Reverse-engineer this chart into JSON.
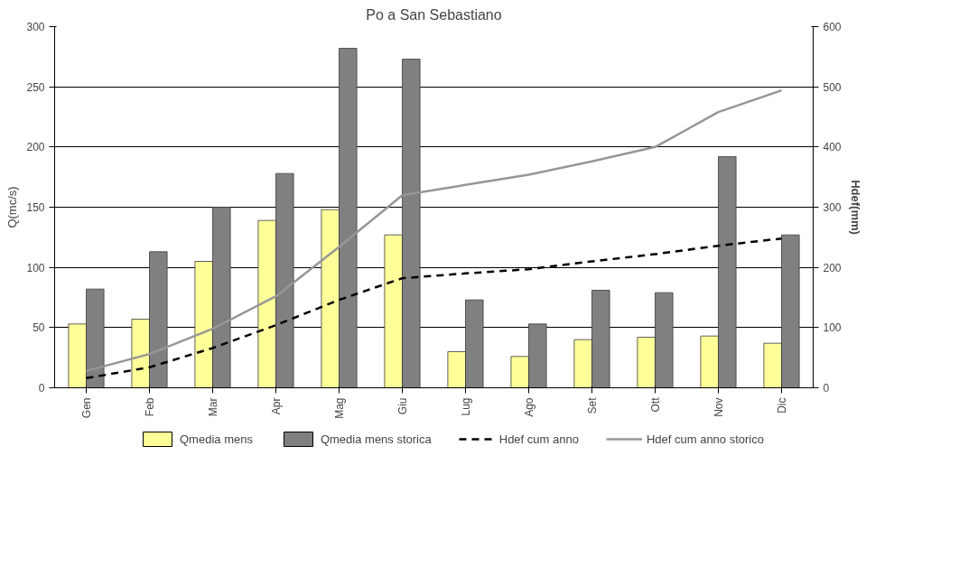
{
  "chart_data": {
    "type": "bar",
    "title": "Po a San Sebastiano",
    "ylabel": "Q(mc/s)",
    "y2label": "Hdef(mm)",
    "categories": [
      "Gen",
      "Feb",
      "Mar",
      "Apr",
      "Mag",
      "Giu",
      "Lug",
      "Ago",
      "Set",
      "Ott",
      "Nov",
      "Dic"
    ],
    "series": [
      {
        "name": "Qmedia mens",
        "color": "#ffff99",
        "values": [
          53,
          57,
          105,
          139,
          148,
          127,
          30,
          26,
          40,
          42,
          43,
          37
        ]
      },
      {
        "name": "Qmedia mens storica",
        "color": "#808080",
        "values": [
          82,
          113,
          150,
          178,
          282,
          273,
          73,
          53,
          81,
          79,
          192,
          127
        ]
      },
      {
        "name": "Hdef cum anno",
        "type": "line",
        "axis": "y2",
        "color": "#000000",
        "line_style": "dashed",
        "values": [
          16,
          34,
          66,
          104,
          146,
          182,
          190,
          197,
          210,
          222,
          236,
          248
        ]
      },
      {
        "name": "Hdef cum anno storico",
        "type": "line",
        "axis": "y2",
        "color": "#969696",
        "line_style": "solid",
        "values": [
          28,
          56,
          98,
          152,
          234,
          320,
          337,
          354,
          376,
          400,
          458,
          494
        ]
      }
    ],
    "ylim": [
      0,
      300
    ],
    "yticks": [
      0,
      50,
      100,
      150,
      200,
      250,
      300
    ],
    "y2lim": [
      0,
      600
    ],
    "y2ticks": [
      0,
      100,
      200,
      300,
      400,
      500,
      600
    ],
    "grid": "y",
    "legend": "bottom"
  }
}
